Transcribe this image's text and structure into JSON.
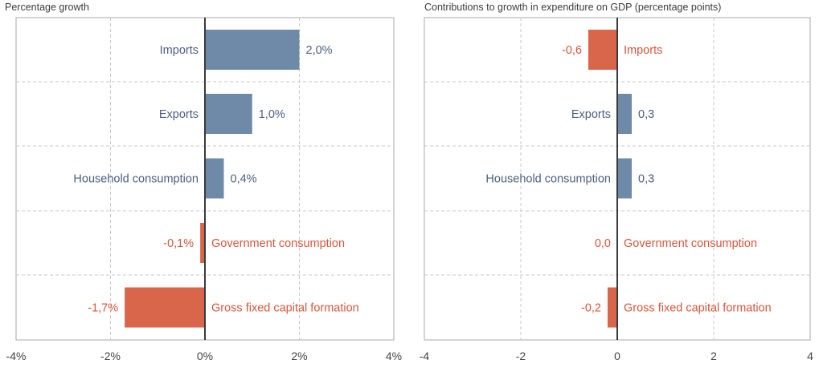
{
  "chart_data": [
    {
      "type": "bar",
      "orientation": "horizontal",
      "title": "Percentage growth",
      "categories": [
        "Imports",
        "Exports",
        "Household consumption",
        "Government consumption",
        "Gross fixed capital formation"
      ],
      "values": [
        2.0,
        1.0,
        0.4,
        -0.1,
        -1.7
      ],
      "value_labels": [
        "2,0%",
        "1,0%",
        "0,4%",
        "-0,1%",
        "-1,7%"
      ],
      "xlim": [
        -4,
        4
      ],
      "xticks": [
        -4,
        -2,
        0,
        2,
        4
      ],
      "xtick_labels": [
        "-4%",
        "-2%",
        "0%",
        "2%",
        "4%"
      ],
      "grid": true,
      "colors": {
        "positive": "#6f89a8",
        "negative": "#d9654a"
      }
    },
    {
      "type": "bar",
      "orientation": "horizontal",
      "title": "Contributions to growth in expenditure on GDP (percentage points)",
      "categories": [
        "Imports",
        "Exports",
        "Household consumption",
        "Government consumption",
        "Gross fixed capital formation"
      ],
      "values": [
        -0.6,
        0.3,
        0.3,
        0.0,
        -0.2
      ],
      "value_labels": [
        "-0,6",
        "0,3",
        "0,3",
        "0,0",
        "-0,2"
      ],
      "xlim": [
        -4,
        4
      ],
      "xticks": [
        -4,
        -2,
        0,
        2,
        4
      ],
      "xtick_labels": [
        "-4",
        "-2",
        "0",
        "2",
        "4"
      ],
      "grid": true,
      "colors": {
        "positive": "#6f89a8",
        "negative": "#d9654a"
      }
    }
  ]
}
